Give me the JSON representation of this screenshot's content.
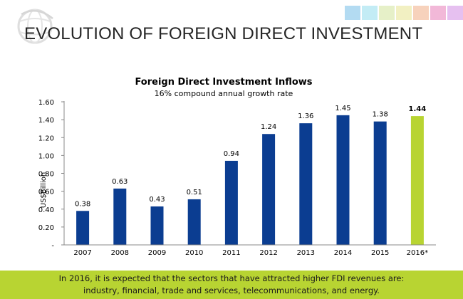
{
  "slide": {
    "title": "EVOLUTION OF FOREIGN DIRECT INVESTMENT",
    "footer_lines": [
      "In 2016, it is expected that the sectors that have attracted higher FDI revenues are:",
      "industry, financial, trade and services, telecommunications, and energy."
    ]
  },
  "decor": {
    "logo_icon": "globe-icon",
    "swatches": [
      "#b3dbf2",
      "#c3ecf5",
      "#e6f0c8",
      "#f2f0c2",
      "#f7d2bc",
      "#f2b8d8",
      "#e6c0f0"
    ]
  },
  "chart_data": {
    "type": "bar",
    "title": "Foreign Direct Investment Inflows",
    "subtitle": "16% compound annual growth rate",
    "ylabel": "US$Billion",
    "xlabel": "",
    "categories": [
      "2007",
      "2008",
      "2009",
      "2010",
      "2011",
      "2012",
      "2013",
      "2014",
      "2015",
      "2016*"
    ],
    "values": [
      0.38,
      0.63,
      0.43,
      0.51,
      0.94,
      1.24,
      1.36,
      1.45,
      1.38,
      1.44
    ],
    "value_labels": [
      "0.38",
      "0.63",
      "0.43",
      "0.51",
      "0.94",
      "1.24",
      "1.36",
      "1.45",
      "1.38",
      "1.44"
    ],
    "ylim": [
      0,
      1.6
    ],
    "yticks": [
      0,
      0.2,
      0.4,
      0.6,
      0.8,
      1.0,
      1.2,
      1.4,
      1.6
    ],
    "ytick_labels": [
      "-",
      "0.20",
      "0.40",
      "0.60",
      "0.80",
      "1.00",
      "1.20",
      "1.40",
      "1.60"
    ],
    "grid": false,
    "colors": {
      "bar": "#0b3d91",
      "highlight": "#b8d432"
    },
    "highlight_index": 9
  }
}
